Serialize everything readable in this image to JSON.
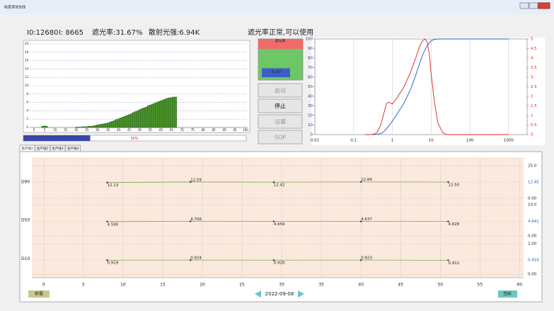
{
  "window_title": "粒度测试在线",
  "info": {
    "i0": "I0:12680",
    "i": "I: 8665",
    "shading": "遮光率:31.67%",
    "scatter": "散射光强:6.94K",
    "status": "遮光率正常,可以使用"
  },
  "gauge": {
    "label": "遮光率",
    "value": 31.67
  },
  "progress": {
    "value": 30,
    "value_label": "30%"
  },
  "buttons": [
    "启动",
    "停止",
    "设置",
    "SOP"
  ],
  "buttons_enabled": [
    false,
    true,
    false,
    false
  ],
  "tabs": [
    "生产线1",
    "生产线2",
    "生产线3",
    "生产线4"
  ],
  "footer": {
    "prev": "前值",
    "date": "2022-09-08",
    "current": "当前"
  },
  "chart_data": [
    {
      "type": "bar",
      "x": [
        4,
        5,
        6,
        20,
        21,
        22,
        23,
        24,
        25,
        26,
        27,
        28,
        29,
        30,
        31,
        32,
        33,
        34,
        35,
        36,
        37,
        38,
        39,
        40,
        41,
        42,
        43,
        44,
        45,
        46,
        47,
        48,
        49,
        50,
        51,
        52,
        53,
        54,
        55,
        56,
        57,
        58,
        59,
        60,
        61,
        62,
        63,
        64,
        65,
        66,
        67
      ],
      "values": [
        0.3,
        0.4,
        0.3,
        0.1,
        0.1,
        0.1,
        0.2,
        0.2,
        0.2,
        0.3,
        0.3,
        0.4,
        0.5,
        0.6,
        0.7,
        0.8,
        0.9,
        1.0,
        1.1,
        1.3,
        1.5,
        1.7,
        1.9,
        2.1,
        2.3,
        2.5,
        2.7,
        2.9,
        3.1,
        3.3,
        3.6,
        3.8,
        4.0,
        4.3,
        4.5,
        4.7,
        4.9,
        5.2,
        5.4,
        5.6,
        5.8,
        6.0,
        6.2,
        6.4,
        6.6,
        6.8,
        7.0,
        7.1,
        7.2,
        7.3,
        7.3
      ],
      "color": "#4c9a2c",
      "xlim": [
        0,
        100
      ],
      "xticks": [
        0,
        5,
        10,
        15,
        20,
        25,
        30,
        35,
        40,
        45,
        50,
        55,
        60,
        65,
        70,
        75,
        80,
        85,
        90,
        95,
        100
      ],
      "ylim": [
        0,
        20
      ],
      "yticks": [
        0,
        2,
        4,
        6,
        8,
        10,
        12,
        14,
        16,
        18,
        20
      ],
      "grid": true
    },
    {
      "type": "line",
      "log_x": true,
      "x": [
        0.2,
        0.3,
        0.4,
        0.5,
        0.6,
        0.7,
        0.8,
        1,
        1.2,
        1.5,
        2,
        3,
        4,
        5,
        6,
        7,
        8,
        9,
        10,
        12,
        15,
        20,
        25,
        30,
        1000
      ],
      "series": [
        {
          "color": "#2255cc",
          "values": [
            0,
            0,
            0.2,
            1,
            3,
            6,
            9,
            14,
            19,
            25,
            33,
            48,
            62,
            74,
            83,
            89,
            93,
            96,
            98,
            99.5,
            100,
            100,
            100,
            100,
            100
          ]
        },
        {
          "color": "#e02020",
          "axis": "y2",
          "values": [
            0,
            0,
            0.1,
            0.5,
            1.1,
            1.6,
            1.7,
            1.6,
            1.8,
            2.1,
            2.5,
            3.3,
            4.0,
            4.6,
            4.9,
            5.0,
            4.8,
            4.2,
            3.2,
            1.8,
            0.6,
            0.1,
            0,
            0,
            0
          ]
        }
      ],
      "xlim": [
        0.01,
        3000
      ],
      "xticks": [
        0.01,
        0.1,
        1,
        10,
        100,
        1000
      ],
      "ylim": [
        0,
        100
      ],
      "yticks": [
        0,
        10,
        20,
        30,
        40,
        50,
        60,
        70,
        80,
        90,
        100
      ],
      "y2lim": [
        0,
        5
      ],
      "y2ticks": [
        0,
        0.5,
        1,
        1.5,
        2,
        2.5,
        3,
        3.5,
        4,
        4.5,
        5
      ],
      "grid": "x"
    },
    {
      "type": "trend",
      "x": [
        8,
        18.5,
        29,
        40,
        51
      ],
      "xlim": [
        -1.5,
        60.5
      ],
      "xticks": [
        0,
        5,
        10,
        15,
        20,
        25,
        30,
        35,
        40,
        45,
        50,
        55,
        60
      ],
      "color": "#7aa84c",
      "panels": [
        {
          "label": "D90",
          "values": [
            12.13,
            12.59,
            12.42,
            12.64,
            12.5
          ],
          "value_labels": [
            "12.13",
            "12.59",
            "12.42",
            "12.64",
            "12.50"
          ],
          "ylim": [
            0,
            25
          ],
          "yticks": [
            {
              "value": 25,
              "label": "25.0"
            },
            {
              "value": 0,
              "label": "0.00"
            }
          ],
          "mean": 12.45
        },
        {
          "label": "D50",
          "values": [
            4.59,
            4.708,
            4.656,
            4.637,
            4.628
          ],
          "value_labels": [
            "4.590",
            "4.708",
            "4.656",
            "4.637",
            "4.628"
          ],
          "ylim": [
            0,
            10
          ],
          "yticks": [
            {
              "value": 10,
              "label": "10.0"
            },
            {
              "value": 0,
              "label": "0.00"
            }
          ],
          "mean": 4.641
        },
        {
          "label": "D10",
          "values": [
            0.919,
            0.924,
            0.92,
            0.923,
            0.912
          ],
          "value_labels": [
            "0.919",
            "0.924",
            "0.920",
            "0.923",
            "0.912"
          ],
          "ylim": [
            0,
            2
          ],
          "yticks": [
            {
              "value": 2,
              "label": "2.00"
            },
            {
              "value": 0,
              "label": "0.00"
            }
          ],
          "mean": 0.919
        }
      ]
    }
  ]
}
